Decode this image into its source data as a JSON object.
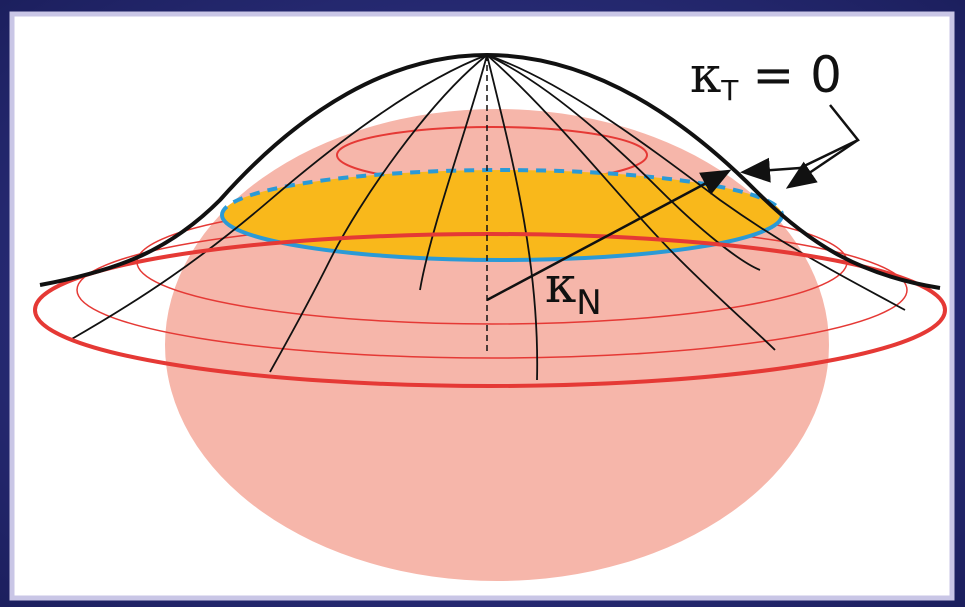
{
  "labels": {
    "kappa_t": {
      "symbol": "κ",
      "subscript": "T",
      "rest": "= 0"
    },
    "kappa_n": {
      "symbol": "κ",
      "subscript": "N"
    }
  }
}
